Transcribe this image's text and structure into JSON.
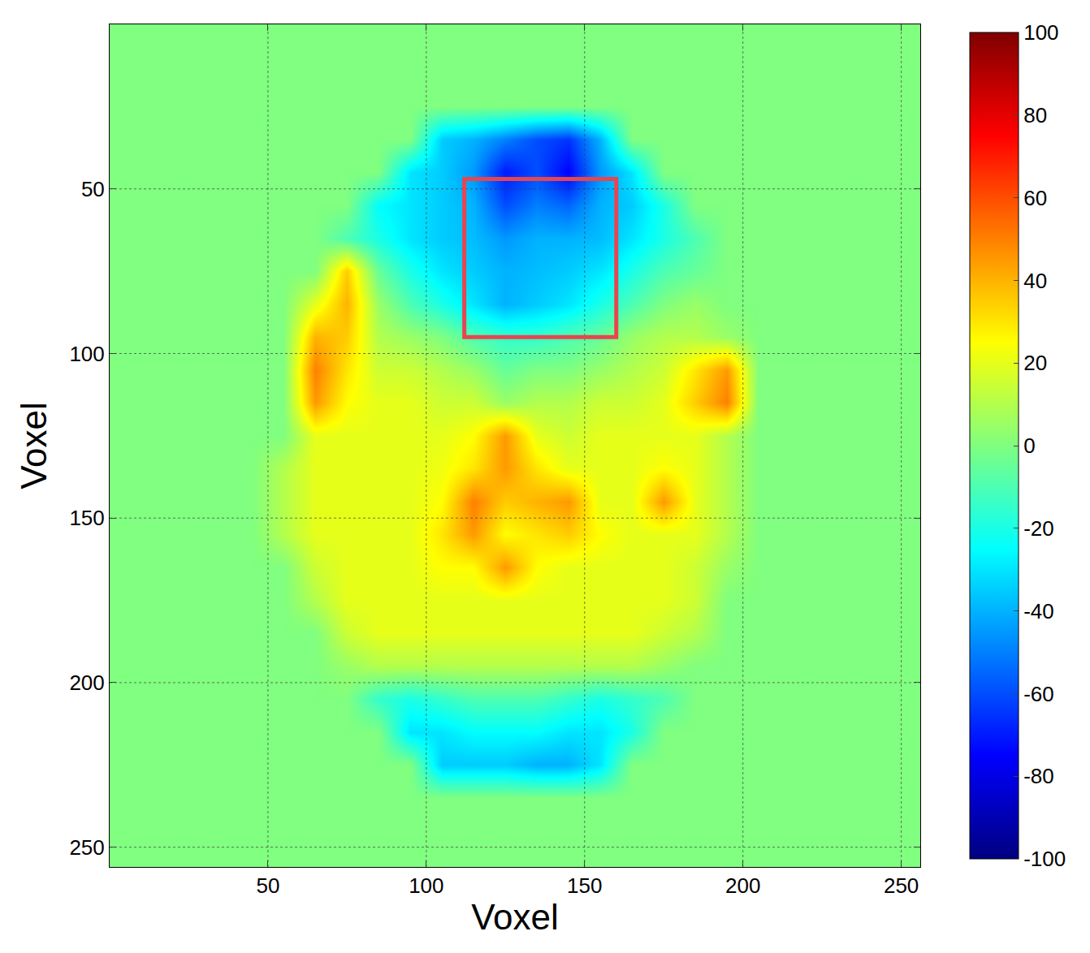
{
  "chart_data": {
    "type": "heatmap",
    "xlabel": "Voxel",
    "ylabel": "Voxel",
    "x": [
      5,
      15,
      25,
      35,
      45,
      55,
      65,
      75,
      85,
      95,
      105,
      115,
      125,
      135,
      145,
      155,
      165,
      175,
      185,
      195,
      205,
      215,
      225,
      235,
      245,
      255
    ],
    "y": [
      5,
      15,
      25,
      35,
      45,
      55,
      65,
      75,
      85,
      95,
      105,
      115,
      125,
      135,
      145,
      155,
      165,
      175,
      185,
      195,
      205,
      215,
      225,
      235,
      245,
      255
    ],
    "z": [
      [
        0,
        0,
        0,
        0,
        0,
        0,
        0,
        0,
        0,
        0,
        0,
        0,
        0,
        0,
        0,
        0,
        0,
        0,
        0,
        0,
        0,
        0,
        0,
        0,
        0,
        0
      ],
      [
        0,
        0,
        0,
        0,
        0,
        0,
        0,
        0,
        0,
        0,
        0,
        0,
        0,
        0,
        0,
        0,
        0,
        0,
        0,
        0,
        0,
        0,
        0,
        0,
        0,
        0
      ],
      [
        0,
        0,
        0,
        0,
        0,
        0,
        0,
        0,
        0,
        0,
        0,
        0,
        0,
        0,
        0,
        0,
        0,
        0,
        0,
        0,
        0,
        0,
        0,
        0,
        0,
        0
      ],
      [
        0,
        0,
        0,
        0,
        0,
        0,
        0,
        0,
        0,
        0,
        -35,
        -40,
        -50,
        -60,
        -65,
        -40,
        0,
        0,
        0,
        0,
        0,
        0,
        0,
        0,
        0,
        0
      ],
      [
        0,
        0,
        0,
        0,
        0,
        0,
        0,
        0,
        0,
        -30,
        -35,
        -45,
        -70,
        -60,
        -75,
        -45,
        -30,
        0,
        0,
        0,
        0,
        0,
        0,
        0,
        0,
        0
      ],
      [
        0,
        0,
        0,
        0,
        0,
        0,
        0,
        0,
        -25,
        -30,
        -35,
        -40,
        -60,
        -50,
        -55,
        -40,
        -35,
        -20,
        0,
        0,
        0,
        0,
        0,
        0,
        0,
        0
      ],
      [
        0,
        0,
        0,
        0,
        0,
        0,
        0,
        -10,
        -20,
        -30,
        -35,
        -38,
        -45,
        -40,
        -40,
        -38,
        -30,
        -20,
        -10,
        0,
        0,
        0,
        0,
        0,
        0,
        0
      ],
      [
        0,
        0,
        0,
        0,
        0,
        0,
        0,
        35,
        -5,
        -20,
        -30,
        -35,
        -40,
        -38,
        -35,
        -30,
        -20,
        -10,
        -5,
        0,
        0,
        0,
        0,
        0,
        0,
        0
      ],
      [
        0,
        0,
        0,
        0,
        0,
        0,
        20,
        40,
        5,
        -10,
        -20,
        -30,
        -40,
        -35,
        -30,
        -20,
        -10,
        0,
        5,
        0,
        0,
        0,
        0,
        0,
        0,
        0
      ],
      [
        0,
        0,
        0,
        0,
        0,
        0,
        40,
        35,
        10,
        5,
        0,
        -10,
        -15,
        -15,
        -10,
        -5,
        5,
        10,
        10,
        5,
        0,
        0,
        0,
        0,
        0,
        0
      ],
      [
        0,
        0,
        0,
        0,
        0,
        0,
        50,
        30,
        15,
        15,
        10,
        5,
        -5,
        0,
        0,
        5,
        10,
        15,
        30,
        45,
        0,
        0,
        0,
        0,
        0,
        0
      ],
      [
        0,
        0,
        0,
        0,
        0,
        0,
        45,
        25,
        20,
        20,
        15,
        15,
        5,
        10,
        10,
        15,
        15,
        20,
        35,
        50,
        0,
        0,
        0,
        0,
        0,
        0
      ],
      [
        0,
        0,
        0,
        0,
        0,
        0,
        20,
        20,
        20,
        20,
        20,
        25,
        45,
        20,
        15,
        20,
        20,
        20,
        20,
        10,
        0,
        0,
        0,
        0,
        0,
        0
      ],
      [
        0,
        0,
        0,
        0,
        0,
        10,
        20,
        20,
        20,
        20,
        22,
        30,
        45,
        30,
        20,
        20,
        20,
        25,
        20,
        10,
        0,
        0,
        0,
        0,
        0,
        0
      ],
      [
        0,
        0,
        0,
        0,
        0,
        10,
        20,
        20,
        20,
        20,
        25,
        50,
        35,
        40,
        45,
        20,
        20,
        45,
        20,
        10,
        0,
        0,
        0,
        0,
        0,
        0
      ],
      [
        0,
        0,
        0,
        0,
        0,
        10,
        20,
        20,
        20,
        20,
        30,
        45,
        25,
        30,
        35,
        25,
        20,
        20,
        20,
        10,
        0,
        0,
        0,
        0,
        0,
        0
      ],
      [
        0,
        0,
        0,
        0,
        0,
        0,
        15,
        20,
        20,
        20,
        25,
        25,
        45,
        25,
        20,
        20,
        20,
        20,
        15,
        5,
        0,
        0,
        0,
        0,
        0,
        0
      ],
      [
        0,
        0,
        0,
        0,
        0,
        0,
        10,
        20,
        20,
        20,
        20,
        20,
        20,
        20,
        20,
        20,
        20,
        20,
        15,
        0,
        0,
        0,
        0,
        0,
        0,
        0
      ],
      [
        0,
        0,
        0,
        0,
        0,
        0,
        0,
        15,
        20,
        20,
        20,
        20,
        20,
        20,
        20,
        20,
        20,
        15,
        10,
        0,
        0,
        0,
        0,
        0,
        0,
        0
      ],
      [
        0,
        0,
        0,
        0,
        0,
        0,
        0,
        5,
        10,
        10,
        10,
        10,
        10,
        10,
        10,
        10,
        10,
        5,
        0,
        0,
        0,
        0,
        0,
        0,
        0,
        0
      ],
      [
        0,
        0,
        0,
        0,
        0,
        0,
        0,
        0,
        -15,
        -20,
        -15,
        -10,
        -10,
        -10,
        -15,
        -20,
        -15,
        -10,
        0,
        0,
        0,
        0,
        0,
        0,
        0,
        0
      ],
      [
        0,
        0,
        0,
        0,
        0,
        0,
        0,
        0,
        0,
        -30,
        -30,
        -25,
        -25,
        -25,
        -30,
        -30,
        -20,
        0,
        0,
        0,
        0,
        0,
        0,
        0,
        0,
        0
      ],
      [
        0,
        0,
        0,
        0,
        0,
        0,
        0,
        0,
        0,
        0,
        -35,
        -35,
        -35,
        -40,
        -40,
        -30,
        0,
        0,
        0,
        0,
        0,
        0,
        0,
        0,
        0,
        0
      ],
      [
        0,
        0,
        0,
        0,
        0,
        0,
        0,
        0,
        0,
        0,
        0,
        0,
        0,
        0,
        0,
        0,
        0,
        0,
        0,
        0,
        0,
        0,
        0,
        0,
        0,
        0
      ],
      [
        0,
        0,
        0,
        0,
        0,
        0,
        0,
        0,
        0,
        0,
        0,
        0,
        0,
        0,
        0,
        0,
        0,
        0,
        0,
        0,
        0,
        0,
        0,
        0,
        0,
        0
      ],
      [
        0,
        0,
        0,
        0,
        0,
        0,
        0,
        0,
        0,
        0,
        0,
        0,
        0,
        0,
        0,
        0,
        0,
        0,
        0,
        0,
        0,
        0,
        0,
        0,
        0,
        0
      ]
    ],
    "xlim": [
      0,
      256
    ],
    "ylim": [
      256,
      0
    ],
    "xticks": [
      50,
      100,
      150,
      200,
      250
    ],
    "yticks": [
      50,
      100,
      150,
      200,
      250
    ],
    "colorbar_range": [
      -100,
      100
    ],
    "colorbar_ticks": [
      -100,
      -80,
      -60,
      -40,
      -20,
      0,
      20,
      40,
      60,
      80,
      100
    ],
    "highlight_box": {
      "x": [
        112,
        160
      ],
      "y": [
        47,
        95
      ],
      "color": "#e8454f"
    },
    "grid": true
  }
}
